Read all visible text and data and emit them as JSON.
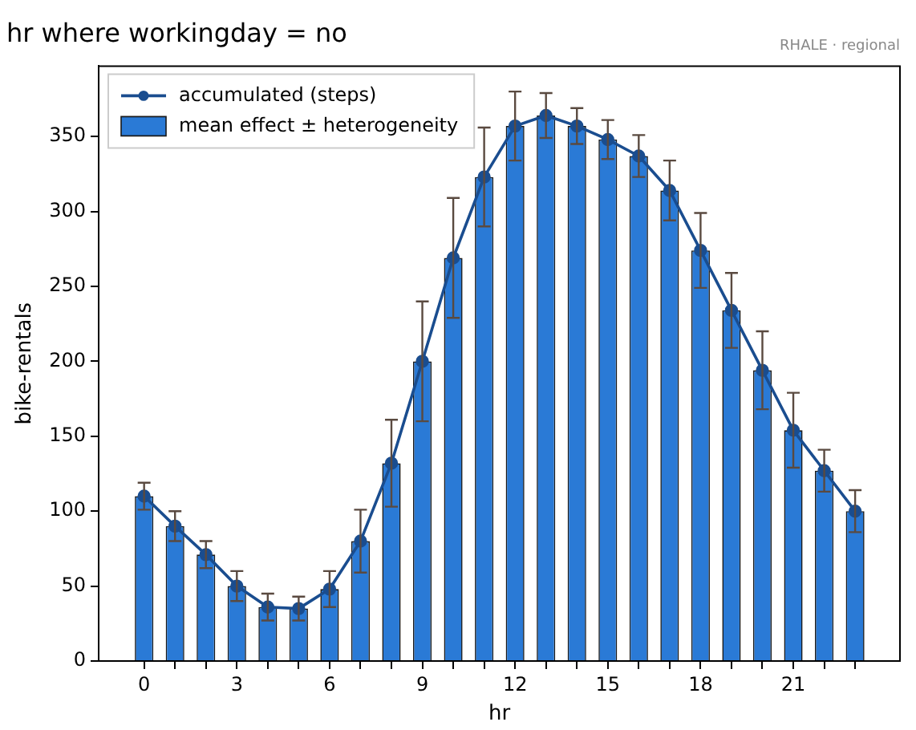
{
  "chart_data": {
    "type": "bar",
    "title": "hr where workingday = no",
    "xlabel": "hr",
    "ylabel": "bike-rentals",
    "annotations": [
      "RHALE · regional"
    ],
    "x": [
      0,
      1,
      2,
      3,
      4,
      5,
      6,
      7,
      8,
      9,
      10,
      11,
      12,
      13,
      14,
      15,
      16,
      17,
      18,
      19,
      20,
      21,
      22,
      23
    ],
    "series": [
      {
        "name": "accumulated (steps)",
        "type": "line",
        "color": "#1a4d8f",
        "values": [
          110,
          90,
          71,
          50,
          36,
          35,
          48,
          80,
          132,
          200,
          269,
          323,
          357,
          364,
          357,
          348,
          337,
          314,
          274,
          234,
          194,
          154,
          127,
          100
        ]
      },
      {
        "name": "mean effect ± heterogeneity",
        "color": "#2a7ad6",
        "values": [
          110,
          90,
          71,
          50,
          36,
          35,
          48,
          80,
          132,
          200,
          269,
          323,
          357,
          364,
          357,
          348,
          337,
          314,
          274,
          234,
          194,
          154,
          127,
          100
        ],
        "errors": [
          9,
          10,
          9,
          10,
          9,
          8,
          12,
          21,
          29,
          40,
          40,
          33,
          23,
          15,
          12,
          13,
          14,
          20,
          25,
          25,
          26,
          25,
          14,
          14
        ]
      }
    ],
    "xlim": [
      -1.47,
      24.45
    ],
    "ylim": [
      0,
      397
    ],
    "xticks": [
      0,
      {
        "value": 1,
        "label": null
      },
      {
        "value": 2,
        "label": null
      },
      3,
      {
        "value": 4,
        "label": null
      },
      {
        "value": 5,
        "label": null
      },
      6,
      {
        "value": 7,
        "label": null
      },
      {
        "value": 8,
        "label": null
      },
      9,
      {
        "value": 10,
        "label": null
      },
      {
        "value": 11,
        "label": null
      },
      12,
      {
        "value": 13,
        "label": null
      },
      {
        "value": 14,
        "label": null
      },
      15,
      {
        "value": 16,
        "label": null
      },
      {
        "value": 17,
        "label": null
      },
      18,
      {
        "value": 19,
        "label": null
      },
      {
        "value": 20,
        "label": null
      },
      21,
      {
        "value": 22,
        "label": null
      },
      {
        "value": 23,
        "label": null
      }
    ],
    "yticks": [
      0,
      50,
      100,
      150,
      200,
      250,
      300,
      350
    ],
    "legend": "top left",
    "marker": "circle",
    "grid": false
  }
}
